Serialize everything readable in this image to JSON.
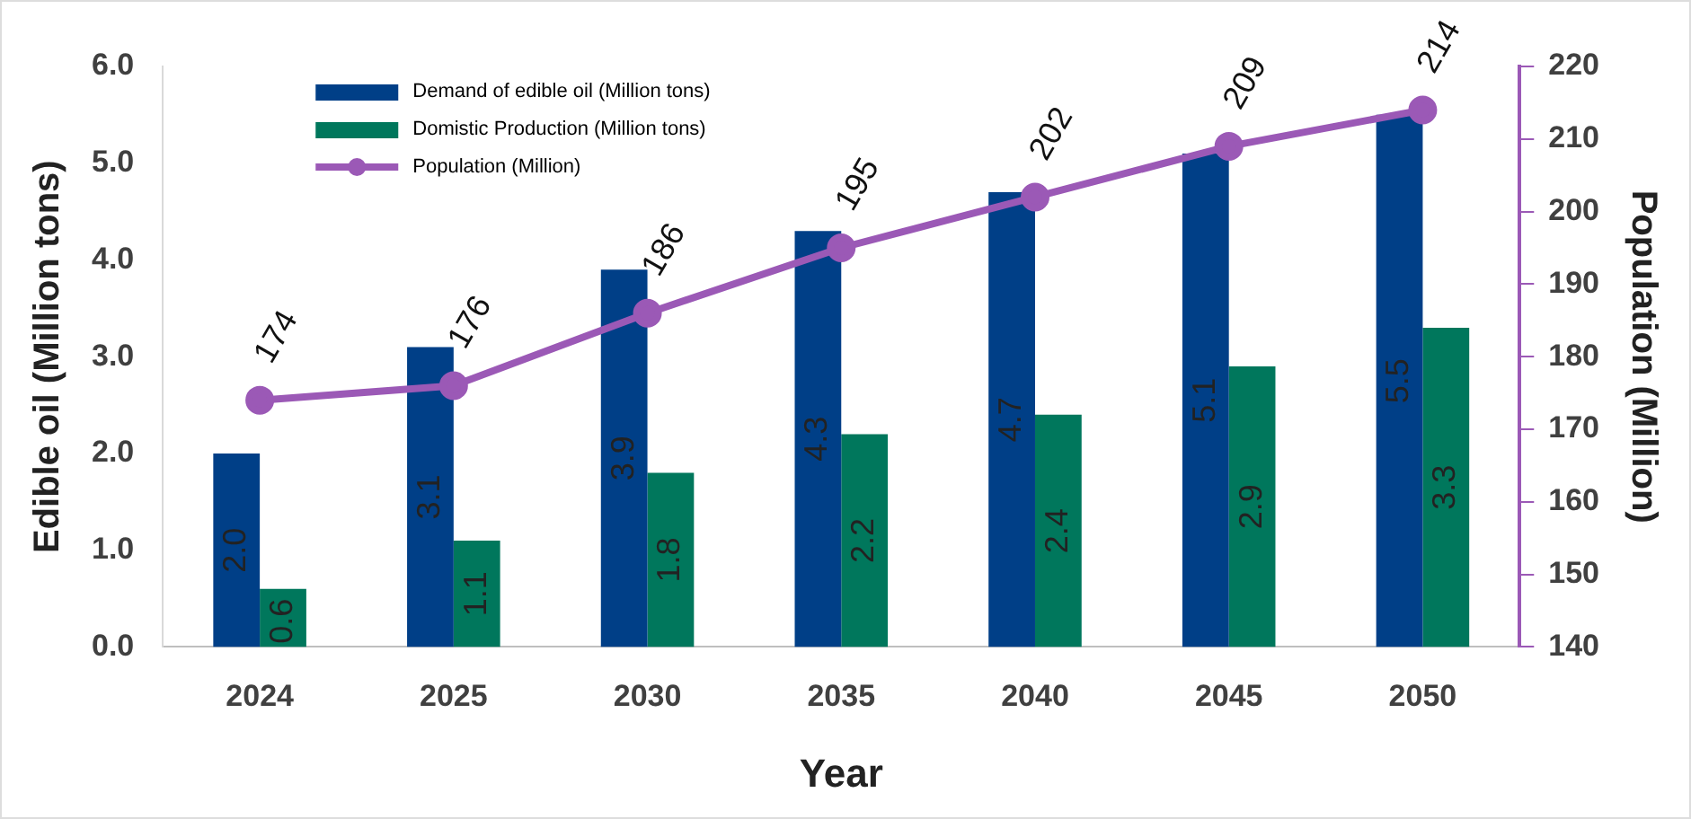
{
  "chart_data": {
    "type": "bar",
    "xlabel": "Year",
    "ylabel": "Edible oil (Million tons)",
    "y2label": "Population (Million)",
    "categories": [
      "2024",
      "2025",
      "2030",
      "2035",
      "2040",
      "2045",
      "2050"
    ],
    "series": [
      {
        "name": "Demand of edible oil (Million tons)",
        "color": "#003f87",
        "values": [
          2.0,
          3.1,
          3.9,
          4.3,
          4.7,
          5.1,
          5.5
        ],
        "value_labels": [
          "2.0",
          "3.1",
          "3.9",
          "4.3",
          "4.7",
          "5.1",
          "5.5"
        ]
      },
      {
        "name": "Domistic Production (Million tons)",
        "color": "#00775c",
        "values": [
          0.6,
          1.1,
          1.8,
          2.2,
          2.4,
          2.9,
          3.3
        ],
        "value_labels": [
          "0.6",
          "1.1",
          "1.8",
          "2.2",
          "2.4",
          "2.9",
          "3.3"
        ]
      },
      {
        "name": "Population (Million)",
        "type": "line",
        "axis": "y2",
        "color": "#9b59b6",
        "marker": "circle",
        "values": [
          174,
          176,
          186,
          195,
          202,
          209,
          214
        ],
        "value_labels": [
          "174",
          "176",
          "186",
          "195",
          "202",
          "209",
          "214"
        ]
      }
    ],
    "ylim": [
      0,
      6
    ],
    "yticks": [
      {
        "value": 0,
        "label": "0.0"
      },
      {
        "value": 1,
        "label": "1.0"
      },
      {
        "value": 2,
        "label": "2.0"
      },
      {
        "value": 3,
        "label": "3.0"
      },
      {
        "value": 4,
        "label": "4.0"
      },
      {
        "value": 5,
        "label": "5.0"
      },
      {
        "value": 6,
        "label": "6.0"
      }
    ],
    "y2lim": [
      140,
      220
    ],
    "y2ticks": [
      140,
      150,
      160,
      170,
      180,
      190,
      200,
      210,
      220
    ],
    "grid": false,
    "legend": "top left"
  }
}
